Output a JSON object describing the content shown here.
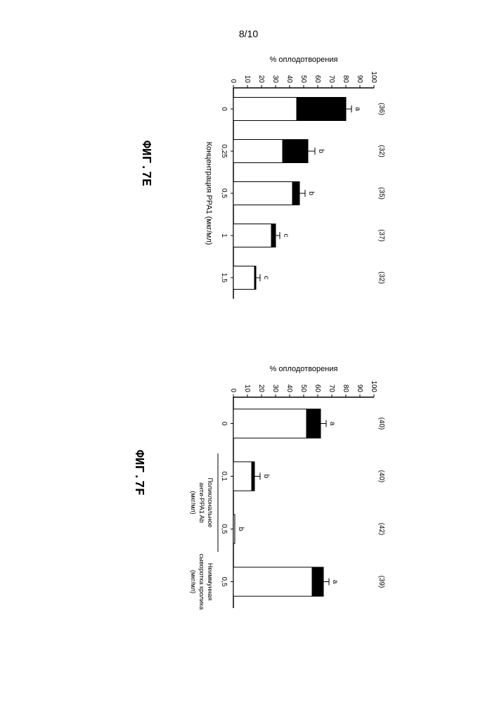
{
  "page_number": "8/10",
  "caption_e": "ФИГ.7E",
  "caption_f": "ФИГ.7F",
  "chart_e": {
    "type": "bar",
    "ylabel": "% оплодотворения",
    "xlabel": "Концентрация PPA1 (мкг/мл)",
    "ylim": [
      0,
      100
    ],
    "ytick_step": 10,
    "categories": [
      "0",
      "0,25",
      "0,5",
      "1",
      "1,5"
    ],
    "n_values": [
      "(36)",
      "(32)",
      "(35)",
      "(37)",
      "(32)"
    ],
    "sig_letters": [
      "a",
      "b",
      "b",
      "c",
      "c"
    ],
    "white_heights": [
      45,
      35,
      42,
      27,
      15
    ],
    "black_heights": [
      35,
      18,
      5,
      3,
      1
    ],
    "error_bars": [
      4,
      5,
      4,
      3,
      3
    ],
    "bar_color_bottom": "#ffffff",
    "bar_color_top": "#000000",
    "axis_color": "#000000",
    "label_fontsize": 11,
    "tick_fontsize": 10,
    "n_fontsize": 10,
    "letter_fontsize": 10
  },
  "chart_f": {
    "type": "bar",
    "ylabel": "% оплодотворения",
    "ylim": [
      0,
      100
    ],
    "ytick_step": 10,
    "group_labelsA": "Поликлональное анти-PPA1 Ab (мкг/мл)",
    "group_labelB": "Неиммунная сыворотка кролика (мкг/мл)",
    "categories": [
      "0",
      "0,1",
      "0,5",
      "0,5"
    ],
    "n_values": [
      "(40)",
      "(40)",
      "(42)",
      "(39)"
    ],
    "sig_letters": [
      "a",
      "b",
      "b",
      "a"
    ],
    "white_heights": [
      52,
      13,
      1,
      56
    ],
    "black_heights": [
      10,
      2,
      0,
      8
    ],
    "error_bars": [
      4,
      4,
      0,
      4
    ],
    "bar_color_bottom": "#ffffff",
    "bar_color_top": "#000000",
    "axis_color": "#000000",
    "label_fontsize": 11,
    "tick_fontsize": 10,
    "n_fontsize": 10,
    "letter_fontsize": 10,
    "group_underlines": [
      {
        "start_idx": 1,
        "end_idx": 2
      }
    ]
  }
}
